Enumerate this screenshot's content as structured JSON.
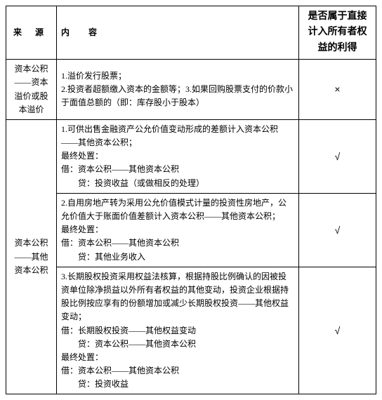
{
  "headers": {
    "source": "来 源",
    "content": "内 容",
    "flag": "是否属于直接计入所有者权益的利得"
  },
  "rows": [
    {
      "source": "资本公积——资本溢价或股本溢价",
      "content": "1.溢价发行股票；\n2.投资者超额缴入资本的金额等；3.如果回购股票支付的价款小于面值总额的（即：库存股小于股本）",
      "flag": "×",
      "source_rowspan": 1
    },
    {
      "source": "资本公积——其他资本公积",
      "content": "1.可供出售金融资产公允价值变动形成的差额计入资本公积——其他资本公积；\n最终处置：\n借：资本公积——其他资本公积\n　　贷：投资收益（或做相反的处理）",
      "flag": "√",
      "source_rowspan": 3
    },
    {
      "content": "2.自用房地产转为采用公允价值模式计量的投资性房地产，公允价值大于账面价值差额计入资本公积——其他资本公积；\n最终处置：\n借：资本公积——其他资本公积\n　　贷：其他业务收入",
      "flag": "√"
    },
    {
      "content": "3.长期股权投资采用权益法核算，根据持股比例确认的因被投资单位除净损益以外所有者权益的其他变动，投资企业根据持股比例按应享有的份额增加或减少长期股权投资——其他权益变动；\n借：长期股权投资——其他权益变动\n　　贷：资本公积——其他资本公积\n最终处置：\n借：资本公积——其他资本公积\n　　贷：投资收益",
      "flag": "√"
    }
  ]
}
